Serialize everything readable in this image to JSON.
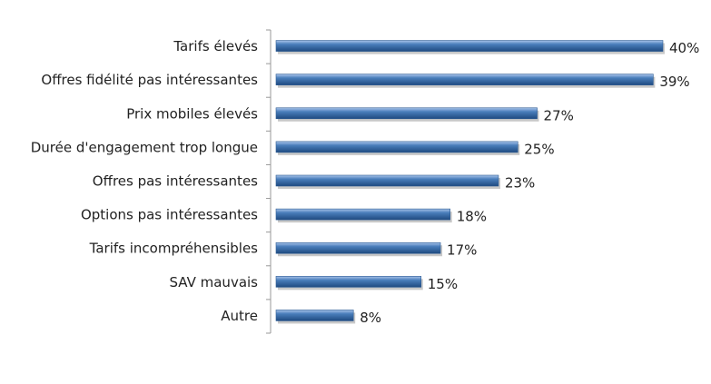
{
  "chart_data": {
    "type": "bar",
    "orientation": "horizontal",
    "categories": [
      "Tarifs élevés",
      "Offres fidélité pas intéressantes",
      "Prix mobiles élevés",
      "Durée d'engagement trop longue",
      "Offres pas intéressantes",
      "Options pas intéressantes",
      "Tarifs incompréhensibles",
      "SAV mauvais",
      "Autre"
    ],
    "values": [
      40,
      39,
      27,
      25,
      23,
      18,
      17,
      15,
      8
    ],
    "value_labels": [
      "40%",
      "39%",
      "27%",
      "25%",
      "23%",
      "18%",
      "17%",
      "15%",
      "8%"
    ],
    "color": "#4a7ebb"
  }
}
